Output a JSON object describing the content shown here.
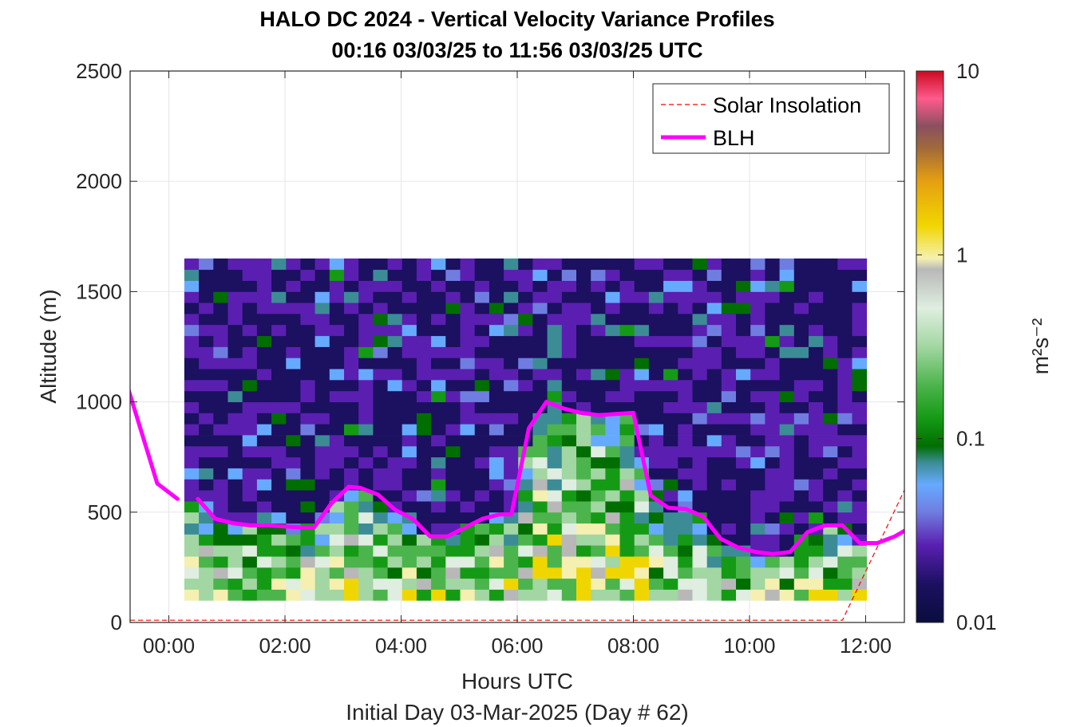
{
  "chart_data": {
    "type": "heatmap",
    "title": "HALO DC 2024 - Vertical Velocity Variance Profiles",
    "subtitle": "00:16 03/03/25 to 11:56 03/03/25  UTC",
    "xlabel": "Hours UTC",
    "xlabel2": "Initial Day 03-Mar-2025 (Day # 62)",
    "ylabel": "Altitude (m)",
    "xlim": [
      -0.667,
      12.667
    ],
    "ylim": [
      0,
      2500
    ],
    "x_ticks": [
      {
        "value": 0,
        "label": "00:00"
      },
      {
        "value": 2,
        "label": "02:00"
      },
      {
        "value": 4,
        "label": "04:00"
      },
      {
        "value": 6,
        "label": "06:00"
      },
      {
        "value": 8,
        "label": "08:00"
      },
      {
        "value": 10,
        "label": "10:00"
      },
      {
        "value": 12,
        "label": "12:00"
      }
    ],
    "y_ticks": [
      0,
      500,
      1000,
      1500,
      2000,
      2500
    ],
    "grid": true,
    "legend_position": "top-right",
    "colorbar": {
      "label": "m²s⁻²",
      "scale": "log",
      "range": [
        0.01,
        10
      ],
      "ticks": [
        {
          "value": 0.01,
          "label": "0.01"
        },
        {
          "value": 0.1,
          "label": "0.1"
        },
        {
          "value": 1,
          "label": "1"
        },
        {
          "value": 10,
          "label": "10"
        }
      ]
    },
    "heatmap_extent": {
      "time_start": 0.267,
      "time_end": 11.933,
      "alt_bottom": 100,
      "alt_top": 1650
    },
    "series": [
      {
        "name": "BLH",
        "color": "#ff00ff",
        "segments": [
          {
            "x": [
              -0.7,
              -0.2,
              0.15
            ],
            "y": [
              1060,
              630,
              560
            ]
          },
          {
            "x": [
              0.5,
              0.8,
              1.1,
              1.4,
              1.7,
              2.0,
              2.3,
              2.5,
              2.8,
              3.1,
              3.3,
              3.6,
              3.9,
              4.2,
              4.5,
              4.8,
              5.1,
              5.4,
              5.7,
              5.9,
              6.2,
              6.5,
              6.8,
              7.1,
              7.4,
              7.7,
              8.0,
              8.3,
              8.6,
              8.9,
              9.2,
              9.5,
              9.8,
              10.1,
              10.4,
              10.7,
              11.0,
              11.3,
              11.6,
              11.9,
              12.2,
              12.5,
              12.7
            ],
            "y": [
              560,
              470,
              450,
              440,
              440,
              435,
              430,
              430,
              540,
              615,
              610,
              580,
              510,
              470,
              390,
              390,
              430,
              470,
              490,
              490,
              880,
              1000,
              970,
              950,
              940,
              945,
              950,
              575,
              520,
              515,
              480,
              380,
              340,
              320,
              310,
              320,
              410,
              440,
              440,
              360,
              360,
              390,
              420
            ]
          }
        ]
      },
      {
        "name": "Solar Insolation",
        "color": "#ff0000",
        "x": [
          -0.667,
          11.6,
          12.667
        ],
        "y": [
          10,
          10,
          600
        ]
      }
    ],
    "colors": {
      "blh": "#ff00ff",
      "solar": "#ff0000",
      "low_variance": "#0a0e3e",
      "grid": "#e6e6e6"
    }
  }
}
